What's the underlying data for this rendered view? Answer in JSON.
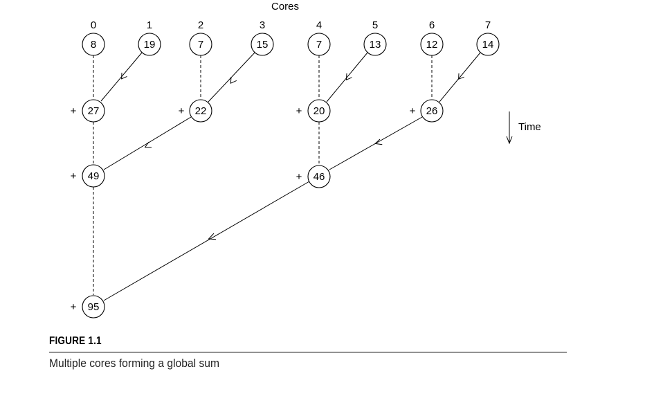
{
  "heading": "Cores",
  "cores": [
    "0",
    "1",
    "2",
    "3",
    "4",
    "5",
    "6",
    "7"
  ],
  "operator": "+",
  "time_label": "Time",
  "nodes": {
    "r0": [
      "8",
      "19",
      "7",
      "15",
      "7",
      "13",
      "12",
      "14"
    ],
    "r1": [
      "27",
      "22",
      "20",
      "26"
    ],
    "r2": [
      "49",
      "46"
    ],
    "r3": [
      "95"
    ]
  },
  "figure": {
    "title": "FIGURE 1.1",
    "caption": "Multiple cores forming a global sum"
  }
}
